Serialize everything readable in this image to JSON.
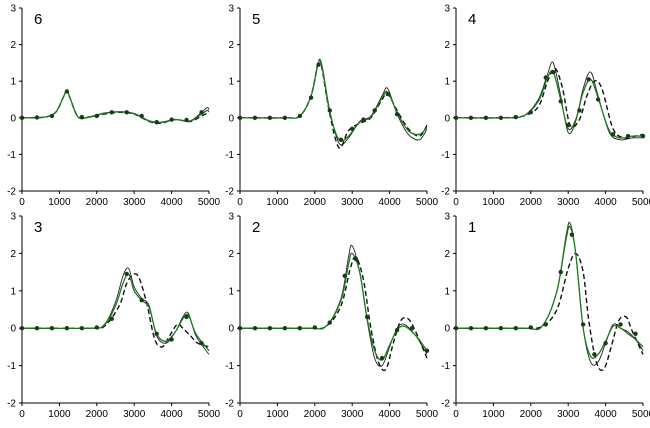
{
  "chart_data": [
    {
      "type": "line",
      "label": "6",
      "xlim": [
        0,
        5000
      ],
      "ylim": [
        -2,
        3
      ],
      "xticks": [
        "0",
        "1000",
        "2000",
        "3000",
        "4000",
        "5000"
      ],
      "yticks": [
        "3",
        "2",
        "1",
        "0",
        "-1",
        "-2"
      ],
      "series": [
        {
          "style": "thin-black",
          "x": [
            0,
            600,
            900,
            1100,
            1200,
            1300,
            1500,
            1800,
            2200,
            2600,
            3000,
            3400,
            3700,
            4100,
            4500,
            4800,
            4950,
            5000
          ],
          "y": [
            0,
            0.02,
            0.15,
            0.55,
            0.75,
            0.5,
            0.02,
            0.03,
            0.13,
            0.17,
            0.12,
            -0.08,
            -0.12,
            -0.05,
            -0.08,
            0.15,
            0.28,
            0.22
          ]
        },
        {
          "style": "dashed-black",
          "x": [
            0,
            600,
            900,
            1100,
            1200,
            1300,
            1500,
            1800,
            2200,
            2600,
            3000,
            3400,
            3700,
            4100,
            4500,
            4800,
            4950,
            5000
          ],
          "y": [
            0,
            0.02,
            0.15,
            0.55,
            0.72,
            0.5,
            0.02,
            0.02,
            0.1,
            0.15,
            0.1,
            -0.1,
            -0.15,
            -0.05,
            -0.1,
            0.05,
            0.12,
            0.1
          ]
        },
        {
          "style": "green",
          "x": [
            0,
            600,
            900,
            1100,
            1200,
            1300,
            1500,
            1800,
            2200,
            2600,
            3000,
            3400,
            3700,
            4100,
            4500,
            4800,
            4950,
            5000
          ],
          "y": [
            0,
            0.02,
            0.15,
            0.55,
            0.73,
            0.5,
            0.02,
            0.02,
            0.12,
            0.16,
            0.11,
            -0.09,
            -0.13,
            -0.05,
            -0.09,
            0.1,
            0.2,
            0.16
          ]
        },
        {
          "style": "markers",
          "x": [
            0,
            400,
            800,
            1200,
            1600,
            2000,
            2400,
            2800,
            3200,
            3600,
            4000,
            4400,
            4800
          ],
          "y": [
            0,
            0.01,
            0.05,
            0.72,
            0.02,
            0.05,
            0.15,
            0.15,
            0.05,
            -0.12,
            -0.05,
            -0.06,
            0.15
          ]
        }
      ]
    },
    {
      "type": "line",
      "label": "5",
      "xlim": [
        0,
        5000
      ],
      "ylim": [
        -2,
        3
      ],
      "xticks": [
        "0",
        "1000",
        "2000",
        "3000",
        "4000",
        "5000"
      ],
      "yticks": [
        "3",
        "2",
        "1",
        "0",
        "-1",
        "-2"
      ],
      "series": [
        {
          "style": "thin-black",
          "x": [
            0,
            1200,
            1600,
            1900,
            2100,
            2200,
            2400,
            2650,
            2900,
            3200,
            3500,
            3800,
            3950,
            4200,
            4500,
            4800,
            5000
          ],
          "y": [
            0,
            0,
            0.05,
            0.6,
            1.5,
            1.4,
            0.2,
            -0.7,
            -0.55,
            -0.1,
            0.05,
            0.6,
            0.8,
            0.1,
            -0.45,
            -0.6,
            -0.3
          ]
        },
        {
          "style": "dashed-black",
          "x": [
            0,
            1200,
            1600,
            1900,
            2100,
            2200,
            2400,
            2650,
            2900,
            3200,
            3500,
            3800,
            3950,
            4200,
            4500,
            4800,
            5000
          ],
          "y": [
            0,
            0,
            0.05,
            0.6,
            1.55,
            1.3,
            0.1,
            -0.82,
            -0.35,
            -0.15,
            0,
            0.5,
            0.65,
            0.2,
            -0.3,
            -0.5,
            -0.2
          ]
        },
        {
          "style": "green",
          "x": [
            0,
            1200,
            1600,
            1900,
            2100,
            2200,
            2400,
            2650,
            2900,
            3200,
            3500,
            3800,
            3950,
            4200,
            4500,
            4800,
            5000
          ],
          "y": [
            0,
            0,
            0.05,
            0.6,
            1.52,
            1.35,
            0.15,
            -0.6,
            -0.5,
            -0.12,
            0.02,
            0.55,
            0.7,
            0.15,
            -0.35,
            -0.45,
            -0.25
          ]
        },
        {
          "style": "markers",
          "x": [
            0,
            400,
            800,
            1200,
            1600,
            1900,
            2100,
            2400,
            2700,
            3000,
            3300,
            3600,
            3950,
            4200
          ],
          "y": [
            0,
            0,
            0,
            0,
            0.05,
            0.55,
            1.45,
            0.2,
            -0.6,
            -0.3,
            -0.05,
            0.2,
            0.65,
            0.1
          ]
        }
      ]
    },
    {
      "type": "line",
      "label": "4",
      "xlim": [
        0,
        5000
      ],
      "ylim": [
        -2,
        3
      ],
      "xticks": [
        "0",
        "1000",
        "2000",
        "3000",
        "4000",
        "5000"
      ],
      "yticks": [
        "3",
        "2",
        "1",
        "0",
        "-1",
        "-2"
      ],
      "series": [
        {
          "style": "thin-black",
          "x": [
            0,
            1200,
            1800,
            2200,
            2450,
            2600,
            2800,
            3000,
            3200,
            3400,
            3600,
            3800,
            4100,
            4400,
            4700,
            5000
          ],
          "y": [
            0,
            0,
            0.05,
            0.5,
            1.2,
            1.5,
            0.6,
            -0.4,
            -0.1,
            0.8,
            1.25,
            0.6,
            -0.4,
            -0.6,
            -0.55,
            -0.55
          ]
        },
        {
          "style": "dashed-black",
          "x": [
            0,
            1200,
            1800,
            2200,
            2450,
            2650,
            2850,
            3050,
            3300,
            3500,
            3700,
            3900,
            4200,
            4500,
            4800,
            5000
          ],
          "y": [
            0,
            0,
            0.05,
            0.3,
            1.0,
            1.35,
            0.8,
            -0.2,
            -0.05,
            0.6,
            1.0,
            0.8,
            -0.3,
            -0.55,
            -0.5,
            -0.45
          ]
        },
        {
          "style": "green",
          "x": [
            0,
            1200,
            1800,
            2200,
            2450,
            2600,
            2800,
            3000,
            3200,
            3400,
            3600,
            3800,
            4100,
            4400,
            4700,
            5000
          ],
          "y": [
            0,
            0,
            0.05,
            0.45,
            1.1,
            1.25,
            0.5,
            -0.3,
            -0.05,
            0.7,
            1.05,
            0.55,
            -0.35,
            -0.55,
            -0.5,
            -0.5
          ]
        },
        {
          "style": "markers",
          "x": [
            0,
            400,
            800,
            1200,
            1600,
            2000,
            2400,
            2600,
            2800,
            3000,
            3300,
            3550,
            3800,
            4200,
            4600,
            5000
          ],
          "y": [
            0,
            0,
            0,
            0,
            0.02,
            0.15,
            1.1,
            1.25,
            0.45,
            -0.2,
            0.2,
            1.05,
            0.5,
            -0.45,
            -0.5,
            -0.5
          ]
        }
      ]
    },
    {
      "type": "line",
      "label": "3",
      "xlim": [
        0,
        5000
      ],
      "ylim": [
        -2,
        3
      ],
      "xticks": [
        "0",
        "1000",
        "2000",
        "3000",
        "4000",
        "5000"
      ],
      "yticks": [
        "3",
        "2",
        "1",
        "0",
        "-1",
        "-2"
      ],
      "series": [
        {
          "style": "thin-black",
          "x": [
            0,
            1800,
            2200,
            2500,
            2700,
            2850,
            3000,
            3200,
            3400,
            3600,
            3850,
            4100,
            4300,
            4450,
            4650,
            5000
          ],
          "y": [
            0,
            0,
            0.1,
            0.7,
            1.4,
            1.6,
            1.1,
            0.8,
            0.6,
            -0.2,
            -0.4,
            -0.1,
            0.3,
            0.4,
            -0.2,
            -0.7
          ]
        },
        {
          "style": "dashed-black",
          "x": [
            0,
            1800,
            2200,
            2600,
            2800,
            3000,
            3150,
            3350,
            3550,
            3750,
            3950,
            4150,
            4300,
            4500,
            4700,
            5000
          ],
          "y": [
            0,
            0,
            0.05,
            0.6,
            1.2,
            1.45,
            1.3,
            0.6,
            -0.3,
            -0.5,
            -0.2,
            0.1,
            0,
            -0.2,
            -0.4,
            -0.5
          ]
        },
        {
          "style": "green",
          "x": [
            0,
            1800,
            2200,
            2500,
            2700,
            2850,
            3000,
            3200,
            3400,
            3600,
            3850,
            4100,
            4300,
            4450,
            4650,
            5000
          ],
          "y": [
            0,
            0,
            0.08,
            0.6,
            1.2,
            1.45,
            1.0,
            0.75,
            0.55,
            -0.15,
            -0.35,
            -0.1,
            0.25,
            0.35,
            -0.15,
            -0.6
          ]
        },
        {
          "style": "markers",
          "x": [
            0,
            400,
            800,
            1200,
            1600,
            2000,
            2400,
            2800,
            3200,
            3600,
            4000,
            4400,
            4800
          ],
          "y": [
            0,
            0,
            0,
            0,
            0,
            0.02,
            0.25,
            1.45,
            0.75,
            -0.15,
            -0.3,
            0.3,
            -0.4
          ]
        }
      ]
    },
    {
      "type": "line",
      "label": "2",
      "xlim": [
        0,
        5000
      ],
      "ylim": [
        -2,
        3
      ],
      "xticks": [
        "0",
        "1000",
        "2000",
        "3000",
        "4000",
        "5000"
      ],
      "yticks": [
        "3",
        "2",
        "1",
        "0",
        "-1",
        "-2"
      ],
      "series": [
        {
          "style": "thin-black",
          "x": [
            0,
            1800,
            2300,
            2700,
            2900,
            3000,
            3200,
            3400,
            3600,
            3800,
            4000,
            4200,
            4400,
            4700,
            5000
          ],
          "y": [
            0,
            0,
            0.05,
            0.8,
            1.9,
            2.2,
            1.5,
            0.2,
            -0.8,
            -1.0,
            -0.5,
            0,
            0.1,
            -0.2,
            -0.7
          ]
        },
        {
          "style": "dashed-black",
          "x": [
            0,
            1800,
            2300,
            2700,
            2950,
            3100,
            3300,
            3500,
            3700,
            3900,
            4100,
            4300,
            4500,
            4700,
            5000
          ],
          "y": [
            0,
            0,
            0.05,
            0.6,
            1.6,
            1.9,
            1.3,
            0,
            -0.9,
            -1.1,
            -0.4,
            0.2,
            0.25,
            -0.1,
            -0.8
          ]
        },
        {
          "style": "green",
          "x": [
            0,
            1800,
            2300,
            2700,
            2900,
            3000,
            3200,
            3400,
            3600,
            3800,
            4000,
            4200,
            4400,
            4700,
            5000
          ],
          "y": [
            0,
            0,
            0.05,
            0.75,
            1.7,
            2.0,
            1.5,
            0.25,
            -0.6,
            -0.85,
            -0.45,
            -0.05,
            0.05,
            -0.2,
            -0.6
          ]
        },
        {
          "style": "markers",
          "x": [
            0,
            400,
            800,
            1200,
            1600,
            2000,
            2400,
            2800,
            3100,
            3400,
            3800,
            4200,
            4600,
            5000
          ],
          "y": [
            0,
            0,
            0,
            0,
            0,
            0.02,
            0.15,
            1.4,
            1.85,
            0.3,
            -0.8,
            -0.05,
            0,
            -0.6
          ]
        }
      ]
    },
    {
      "type": "line",
      "label": "1",
      "xlim": [
        0,
        5000
      ],
      "ylim": [
        -2,
        3
      ],
      "xticks": [
        "0",
        "1000",
        "2000",
        "3000",
        "4000",
        "5000"
      ],
      "yticks": [
        "3",
        "2",
        "1",
        "0",
        "-1",
        "-2"
      ],
      "series": [
        {
          "style": "thin-black",
          "x": [
            0,
            1800,
            2300,
            2700,
            2950,
            3050,
            3200,
            3400,
            3600,
            3800,
            4000,
            4200,
            4400,
            4600,
            4800,
            5000
          ],
          "y": [
            0,
            0,
            0.05,
            1.0,
            2.4,
            2.7,
            2.0,
            0,
            -0.9,
            -0.9,
            -0.4,
            0.1,
            0,
            -0.1,
            -0.3,
            -0.6
          ]
        },
        {
          "style": "dashed-black",
          "x": [
            0,
            1800,
            2300,
            2700,
            3000,
            3200,
            3400,
            3550,
            3750,
            3950,
            4150,
            4350,
            4550,
            4700,
            5000
          ],
          "y": [
            0,
            0,
            0.05,
            0.5,
            1.6,
            2.0,
            1.5,
            0.2,
            -0.9,
            -1.1,
            -0.5,
            0.2,
            0.3,
            -0.05,
            -0.7
          ]
        },
        {
          "style": "green",
          "x": [
            0,
            1800,
            2300,
            2700,
            2950,
            3050,
            3200,
            3400,
            3600,
            3800,
            4000,
            4200,
            4400,
            4600,
            4800,
            5000
          ],
          "y": [
            0,
            0,
            0.05,
            1.0,
            2.5,
            2.8,
            2.0,
            0,
            -0.75,
            -0.7,
            -0.35,
            0.05,
            0,
            -0.15,
            -0.3,
            -0.5
          ]
        },
        {
          "style": "markers",
          "x": [
            0,
            400,
            800,
            1200,
            1600,
            2000,
            2400,
            2800,
            3100,
            3400,
            3700,
            4000,
            4400,
            4800
          ],
          "y": [
            0,
            0,
            0,
            0,
            0,
            0.02,
            0.1,
            1.5,
            2.5,
            0.1,
            -0.7,
            -0.4,
            0.1,
            -0.15
          ]
        }
      ]
    }
  ]
}
